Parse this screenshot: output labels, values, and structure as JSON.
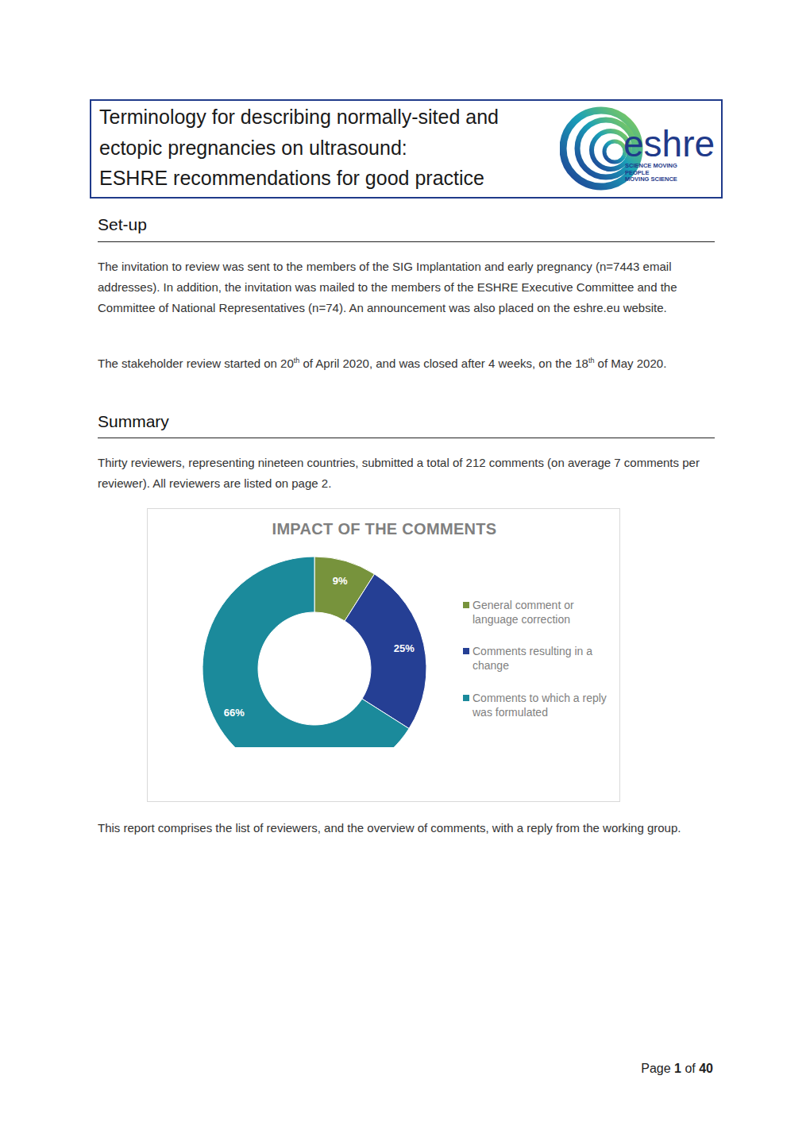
{
  "document": {
    "header": {
      "title": [
        "Terminology for describing normally-sited and",
        "ectopic pregnancies on ultrasound:",
        "ESHRE recommendations for good practice"
      ],
      "logo": {
        "name": "eshre",
        "tagline": [
          "SCIENCE MOVING",
          "PEOPLE",
          "MOVING SCIENCE"
        ]
      }
    },
    "sections": [
      {
        "heading": "Set-up",
        "paragraphs": [
          [
            {
              "text": "The invitation to review was sent to the members of the SIG Implantation and early pregnancy (n=7443 email addresses). In addition, the invitation was mailed to the members of the ESHRE Executive Committee and the Committee of National Representatives (n=74). An announcement was also placed on the eshre.eu website."
            }
          ],
          [
            {
              "text": "The stakeholder review started on 20"
            },
            {
              "sup": "th"
            },
            {
              "text": " of April 2020, and was closed after 4 weeks, on the 18"
            },
            {
              "sup": "th"
            },
            {
              "text": " of May 2020."
            }
          ]
        ]
      },
      {
        "heading": "Summary",
        "paragraphs": [
          [
            {
              "text": "Thirty reviewers, representing nineteen countries, submitted a total of 212 comments (on average 7 comments per reviewer). All reviewers are listed on page 2."
            }
          ]
        ],
        "after_chart": [
          [
            {
              "text": "This report comprises the list of reviewers, and the overview of comments, with a reply from the working group."
            }
          ]
        ]
      }
    ],
    "footer": [
      {
        "text": "Page "
      },
      {
        "bold": "1"
      },
      {
        "text": " of "
      },
      {
        "bold": "40"
      }
    ]
  },
  "chart_data": {
    "type": "donut",
    "title": "IMPACT OF THE COMMENTS",
    "categories": [
      "General comment or language correction",
      "Comments resulting in a change",
      "Comments to which a reply was formulated"
    ],
    "values": [
      9,
      25,
      66
    ],
    "value_labels": [
      "9%",
      "25%",
      "66%"
    ],
    "colors": [
      "#77933c",
      "#253f94",
      "#1b8a9b"
    ],
    "data_labels": true,
    "legend": "right"
  }
}
